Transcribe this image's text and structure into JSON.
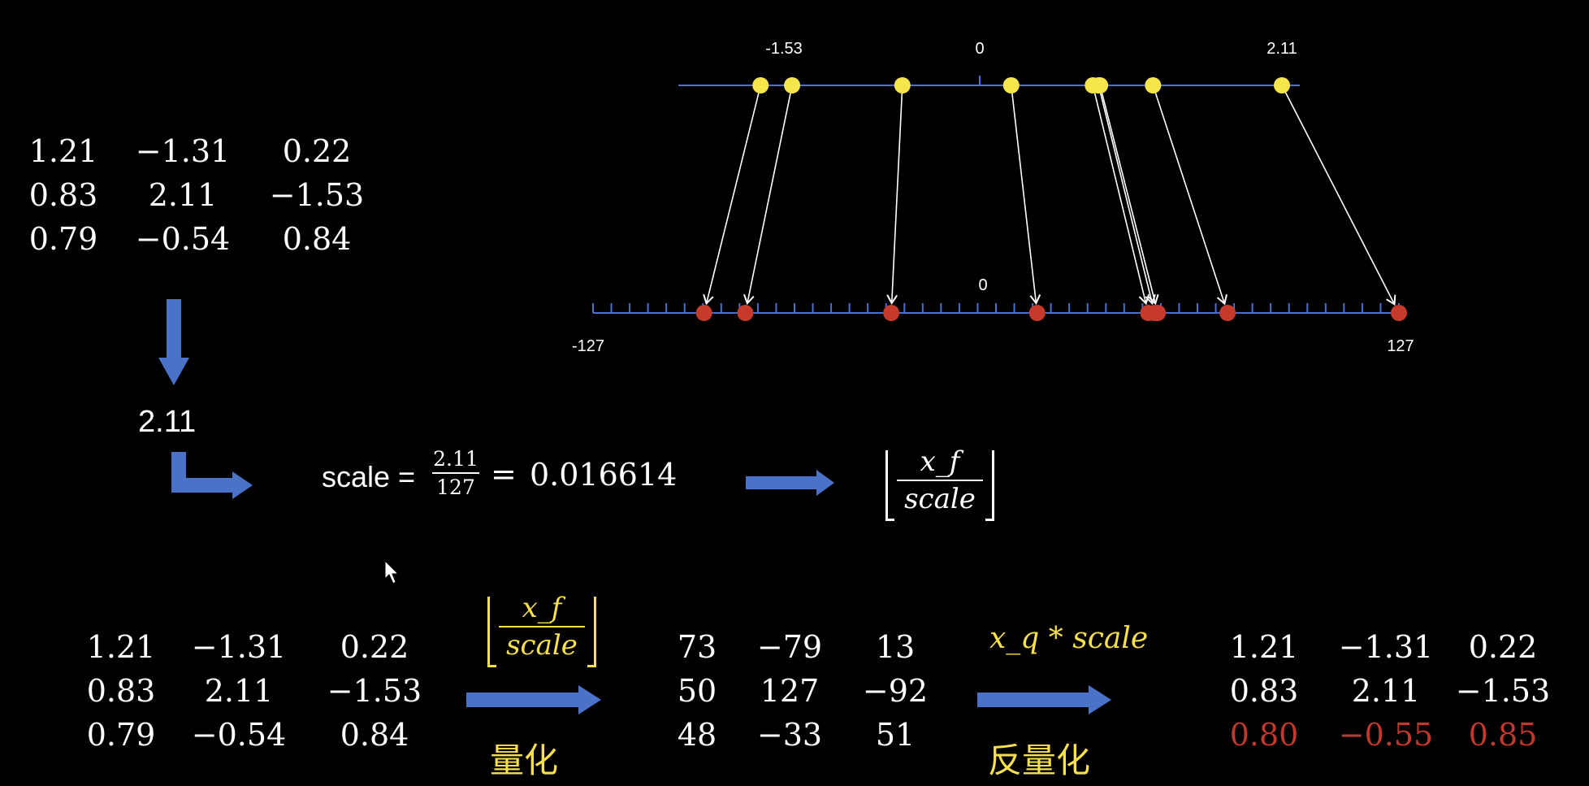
{
  "colors": {
    "background": "#000000",
    "text": "#ffffff",
    "highlight": "#f7e04b",
    "error": "#c0392b",
    "arrow": "#4a72c9",
    "axis": "#4a6fd0",
    "float_point": "#f7e64b",
    "int_point": "#c63a2b"
  },
  "number_lines": {
    "float_axis": {
      "min_label": "-1.53",
      "zero_label": "0",
      "max_label": "2.11",
      "points": [
        -1.53,
        -1.31,
        -0.54,
        0.22,
        0.79,
        0.83,
        0.84,
        1.21,
        2.11
      ]
    },
    "int_axis": {
      "min_label": "-127",
      "zero_label": "0",
      "max_label": "127",
      "points": [
        -92,
        -79,
        -33,
        13,
        48,
        50,
        51,
        73,
        127
      ]
    }
  },
  "matrix_original": {
    "rows": [
      [
        "1.21",
        "−1.31",
        "0.22"
      ],
      [
        "0.83",
        "2.11",
        "−1.53"
      ],
      [
        "0.79",
        "−0.54",
        "0.84"
      ]
    ]
  },
  "max_abs_value": "2.11",
  "scale_formula": {
    "label": "scale =",
    "numerator": "2.11",
    "denominator": "127",
    "equals": "=",
    "result": "0.016614"
  },
  "quantize_formula": {
    "numerator": "x_f",
    "denominator": "scale"
  },
  "pipeline": {
    "input_rows": [
      [
        "1.21",
        "−1.31",
        "0.22"
      ],
      [
        "0.83",
        "2.11",
        "−1.53"
      ],
      [
        "0.79",
        "−0.54",
        "0.84"
      ]
    ],
    "quantize_label": "量化",
    "quantized_rows": [
      [
        "73",
        "−79",
        "13"
      ],
      [
        "50",
        "127",
        "−92"
      ],
      [
        "48",
        "−33",
        "51"
      ]
    ],
    "dequantize_formula": "x_q * scale",
    "dequantize_label": "反量化",
    "output_rows": [
      [
        "1.21",
        "−1.31",
        "0.22"
      ],
      [
        "0.83",
        "2.11",
        "−1.53"
      ],
      [
        "0.80",
        "−0.55",
        "0.85"
      ]
    ],
    "output_error_row": 2
  }
}
